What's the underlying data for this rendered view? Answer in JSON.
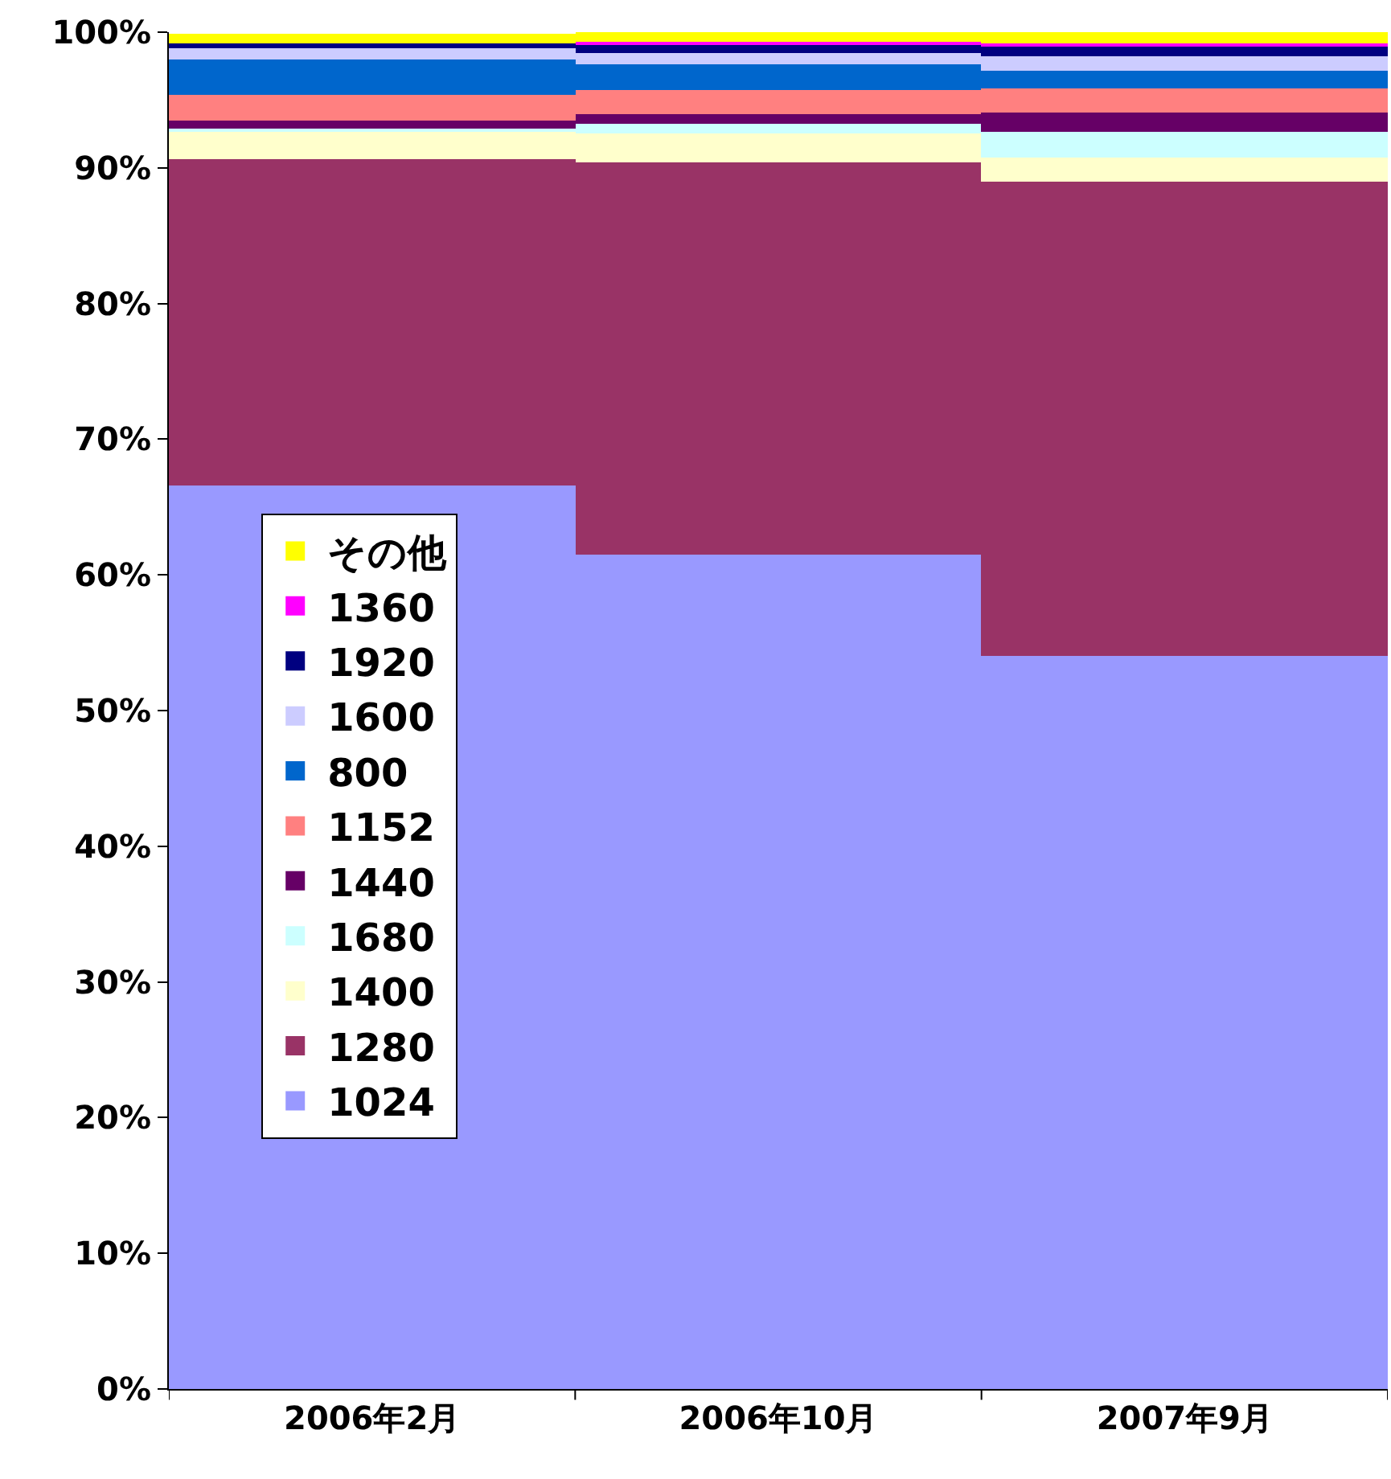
{
  "chart_data": {
    "type": "bar",
    "stacked": true,
    "categories": [
      "2006年2月",
      "2006年10月",
      "2007年9月"
    ],
    "series": [
      {
        "name": "1024",
        "color": "#9999ff",
        "values": [
          66.6,
          61.5,
          54.0
        ]
      },
      {
        "name": "1280",
        "color": "#993366",
        "values": [
          24.0,
          28.9,
          35.0
        ]
      },
      {
        "name": "1400",
        "color": "#ffffcc",
        "values": [
          2.1,
          2.1,
          1.7
        ]
      },
      {
        "name": "1680",
        "color": "#ccffff",
        "values": [
          0.2,
          0.8,
          1.9
        ]
      },
      {
        "name": "1440",
        "color": "#660066",
        "values": [
          0.6,
          0.7,
          1.5
        ]
      },
      {
        "name": "1152",
        "color": "#ff8080",
        "values": [
          1.9,
          1.7,
          1.7
        ]
      },
      {
        "name": "800",
        "color": "#0066cc",
        "values": [
          2.6,
          1.9,
          1.3
        ]
      },
      {
        "name": "1600",
        "color": "#ccccff",
        "values": [
          0.8,
          0.9,
          1.1
        ]
      },
      {
        "name": "1920",
        "color": "#000080",
        "values": [
          0.4,
          0.5,
          0.7
        ]
      },
      {
        "name": "1360",
        "color": "#ff00ff",
        "values": [
          null,
          0.3,
          0.3
        ]
      },
      {
        "name": "その他",
        "color": "#ffff00",
        "values": [
          0.7,
          0.7,
          0.8
        ]
      }
    ],
    "ylim": [
      0,
      100
    ],
    "yticks": [
      {
        "value": 0,
        "label": "0%"
      },
      {
        "value": 10,
        "label": "10%"
      },
      {
        "value": 20,
        "label": "20%"
      },
      {
        "value": 30,
        "label": "30%"
      },
      {
        "value": 40,
        "label": "40%"
      },
      {
        "value": 50,
        "label": "50%"
      },
      {
        "value": 60,
        "label": "60%"
      },
      {
        "value": 70,
        "label": "70%"
      },
      {
        "value": 80,
        "label": "80%"
      },
      {
        "value": 90,
        "label": "90%"
      },
      {
        "value": 100,
        "label": "100%"
      }
    ],
    "legend": "left"
  }
}
